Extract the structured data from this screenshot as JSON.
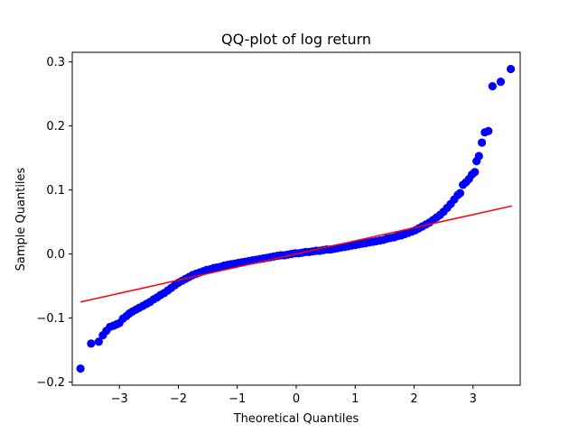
{
  "chart_data": {
    "type": "scatter",
    "title": "QQ-plot of log return",
    "xlabel": "Theoretical Quantiles",
    "ylabel": "Sample Quantiles",
    "xlim": [
      -3.8,
      3.8
    ],
    "ylim": [
      -0.205,
      0.315
    ],
    "x_ticks": [
      -3,
      -2,
      -1,
      0,
      1,
      2,
      3
    ],
    "x_tick_labels": [
      "−3",
      "−2",
      "−1",
      "0",
      "1",
      "2",
      "3"
    ],
    "y_ticks": [
      -0.2,
      -0.1,
      0.0,
      0.1,
      0.2,
      0.3
    ],
    "y_tick_labels": [
      "−0.2",
      "−0.1",
      "0.0",
      "0.1",
      "0.2",
      "0.3"
    ],
    "grid": false,
    "colors": {
      "points": "#0000ff",
      "line": "#ff0000"
    },
    "reference_line": {
      "x": [
        -3.66,
        3.66
      ],
      "y": [
        -0.075,
        0.075
      ]
    },
    "points": [
      [
        -3.66,
        -0.179
      ],
      [
        -3.48,
        -0.14
      ],
      [
        -3.35,
        -0.137
      ],
      [
        -3.28,
        -0.127
      ],
      [
        -3.22,
        -0.12
      ],
      [
        -3.16,
        -0.114
      ],
      [
        -3.1,
        -0.112
      ],
      [
        -3.05,
        -0.11
      ],
      [
        -3.0,
        -0.108
      ],
      [
        -2.94,
        -0.101
      ],
      [
        -2.88,
        -0.097
      ],
      [
        -2.83,
        -0.093
      ],
      [
        -2.78,
        -0.09
      ],
      [
        -2.72,
        -0.087
      ],
      [
        -2.66,
        -0.084
      ],
      [
        -2.6,
        -0.081
      ],
      [
        -2.54,
        -0.078
      ],
      [
        -2.48,
        -0.075
      ],
      [
        -2.42,
        -0.071
      ],
      [
        -2.36,
        -0.068
      ],
      [
        -2.3,
        -0.064
      ],
      [
        -2.24,
        -0.061
      ],
      [
        -2.18,
        -0.057
      ],
      [
        -2.12,
        -0.053
      ],
      [
        -2.06,
        -0.049
      ],
      [
        -2.0,
        -0.045
      ],
      [
        -1.94,
        -0.042
      ],
      [
        -1.88,
        -0.039
      ],
      [
        -1.82,
        -0.036
      ],
      [
        -1.76,
        -0.033
      ],
      [
        -1.7,
        -0.031
      ],
      [
        -1.64,
        -0.029
      ],
      [
        -1.58,
        -0.027
      ],
      [
        -1.52,
        -0.025
      ],
      [
        -1.46,
        -0.024
      ],
      [
        -1.4,
        -0.022
      ],
      [
        -1.34,
        -0.021
      ],
      [
        -1.28,
        -0.02
      ],
      [
        -1.22,
        -0.018
      ],
      [
        -1.16,
        -0.017
      ],
      [
        -1.1,
        -0.016
      ],
      [
        -1.04,
        -0.015
      ],
      [
        -0.98,
        -0.014
      ],
      [
        -0.92,
        -0.013
      ],
      [
        -0.86,
        -0.012
      ],
      [
        -0.8,
        -0.011
      ],
      [
        -0.74,
        -0.01
      ],
      [
        -0.68,
        -0.009
      ],
      [
        -0.62,
        -0.008
      ],
      [
        -0.56,
        -0.007
      ],
      [
        -0.5,
        -0.006
      ],
      [
        -0.44,
        -0.005
      ],
      [
        -0.38,
        -0.004
      ],
      [
        -0.32,
        -0.003
      ],
      [
        -0.26,
        -0.002
      ],
      [
        -0.2,
        -0.002
      ],
      [
        -0.14,
        -0.001
      ],
      [
        -0.08,
        0.0
      ],
      [
        -0.02,
        0.001
      ],
      [
        0.04,
        0.001
      ],
      [
        0.1,
        0.002
      ],
      [
        0.16,
        0.003
      ],
      [
        0.22,
        0.003
      ],
      [
        0.28,
        0.004
      ],
      [
        0.34,
        0.005
      ],
      [
        0.4,
        0.005
      ],
      [
        0.46,
        0.006
      ],
      [
        0.52,
        0.007
      ],
      [
        0.58,
        0.007
      ],
      [
        0.64,
        0.008
      ],
      [
        0.7,
        0.009
      ],
      [
        0.76,
        0.01
      ],
      [
        0.82,
        0.011
      ],
      [
        0.88,
        0.012
      ],
      [
        0.94,
        0.013
      ],
      [
        1.0,
        0.014
      ],
      [
        1.06,
        0.015
      ],
      [
        1.12,
        0.016
      ],
      [
        1.18,
        0.017
      ],
      [
        1.24,
        0.018
      ],
      [
        1.3,
        0.019
      ],
      [
        1.36,
        0.02
      ],
      [
        1.42,
        0.021
      ],
      [
        1.48,
        0.022
      ],
      [
        1.54,
        0.024
      ],
      [
        1.6,
        0.025
      ],
      [
        1.66,
        0.026
      ],
      [
        1.72,
        0.028
      ],
      [
        1.78,
        0.029
      ],
      [
        1.84,
        0.031
      ],
      [
        1.9,
        0.033
      ],
      [
        1.96,
        0.035
      ],
      [
        2.02,
        0.037
      ],
      [
        2.08,
        0.04
      ],
      [
        2.14,
        0.043
      ],
      [
        2.2,
        0.046
      ],
      [
        2.26,
        0.049
      ],
      [
        2.32,
        0.053
      ],
      [
        2.38,
        0.057
      ],
      [
        2.44,
        0.061
      ],
      [
        2.5,
        0.066
      ],
      [
        2.56,
        0.072
      ],
      [
        2.62,
        0.078
      ],
      [
        2.68,
        0.085
      ],
      [
        2.74,
        0.092
      ],
      [
        2.78,
        0.095
      ],
      [
        2.83,
        0.108
      ],
      [
        2.88,
        0.112
      ],
      [
        2.93,
        0.117
      ],
      [
        2.98,
        0.124
      ],
      [
        3.03,
        0.128
      ],
      [
        3.06,
        0.145
      ],
      [
        3.1,
        0.153
      ],
      [
        3.15,
        0.174
      ],
      [
        3.2,
        0.19
      ],
      [
        3.26,
        0.192
      ],
      [
        3.33,
        0.262
      ],
      [
        3.47,
        0.269
      ],
      [
        3.64,
        0.289
      ]
    ]
  }
}
